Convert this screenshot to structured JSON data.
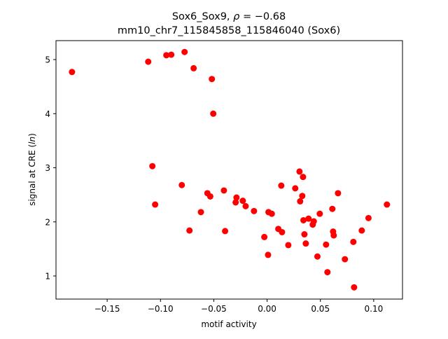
{
  "chart_data": {
    "type": "scatter",
    "title_line1_prefix": "Sox6_Sox9, ",
    "title_line1_rho": "ρ",
    "title_line1_suffix": " = −0.68",
    "title_line2": "mm10_chr7_115845858_115846040 (Sox6)",
    "xlabel": "motif activity",
    "ylabel_prefix": "signal at CRE (",
    "ylabel_italic": "ln",
    "ylabel_suffix": ")",
    "xlim": [
      -0.198,
      0.127
    ],
    "ylim": [
      0.573,
      5.35
    ],
    "xticks": [
      -0.15,
      -0.1,
      -0.05,
      0.0,
      0.05,
      0.1
    ],
    "xtick_labels": [
      "−0.15",
      "−0.10",
      "−0.05",
      "0.00",
      "0.05",
      "0.10"
    ],
    "yticks": [
      1,
      2,
      3,
      4,
      5
    ],
    "ytick_labels": [
      "1",
      "2",
      "3",
      "4",
      "5"
    ],
    "grid": false,
    "marker_color": "#ff0000",
    "points": [
      [
        -0.183,
        4.77
      ],
      [
        -0.1115,
        4.96
      ],
      [
        -0.0945,
        5.08
      ],
      [
        -0.0899,
        5.09
      ],
      [
        -0.0774,
        5.14
      ],
      [
        -0.0689,
        4.84
      ],
      [
        -0.0518,
        4.64
      ],
      [
        -0.0505,
        4.0
      ],
      [
        -0.1076,
        3.03
      ],
      [
        -0.105,
        2.32
      ],
      [
        -0.08,
        2.68
      ],
      [
        -0.0728,
        1.84
      ],
      [
        -0.0621,
        2.18
      ],
      [
        -0.056,
        2.53
      ],
      [
        -0.0533,
        2.47
      ],
      [
        -0.0405,
        2.58
      ],
      [
        -0.0394,
        1.83
      ],
      [
        -0.0287,
        2.45
      ],
      [
        -0.0295,
        2.36
      ],
      [
        -0.0228,
        2.39
      ],
      [
        -0.0201,
        2.29
      ],
      [
        -0.0123,
        2.2
      ],
      [
        -0.0026,
        1.72
      ],
      [
        0.0009,
        1.39
      ],
      [
        0.0013,
        2.18
      ],
      [
        0.0044,
        2.15
      ],
      [
        0.0105,
        1.87
      ],
      [
        0.014,
        1.81
      ],
      [
        0.0133,
        2.67
      ],
      [
        0.0199,
        1.57
      ],
      [
        0.0264,
        2.62
      ],
      [
        0.0304,
        2.93
      ],
      [
        0.0337,
        2.83
      ],
      [
        0.033,
        2.48
      ],
      [
        0.031,
        2.38
      ],
      [
        0.0341,
        2.03
      ],
      [
        0.035,
        1.77
      ],
      [
        0.0363,
        1.6
      ],
      [
        0.0389,
        2.06
      ],
      [
        0.0438,
        2.01
      ],
      [
        0.0428,
        1.95
      ],
      [
        0.0472,
        1.36
      ],
      [
        0.0494,
        2.15
      ],
      [
        0.0553,
        1.58
      ],
      [
        0.0566,
        1.07
      ],
      [
        0.0612,
        2.24
      ],
      [
        0.0619,
        1.82
      ],
      [
        0.0625,
        1.75
      ],
      [
        0.0665,
        2.53
      ],
      [
        0.073,
        1.31
      ],
      [
        0.0809,
        1.63
      ],
      [
        0.0816,
        0.79
      ],
      [
        0.0888,
        1.84
      ],
      [
        0.0951,
        2.07
      ],
      [
        0.1124,
        2.32
      ]
    ]
  }
}
